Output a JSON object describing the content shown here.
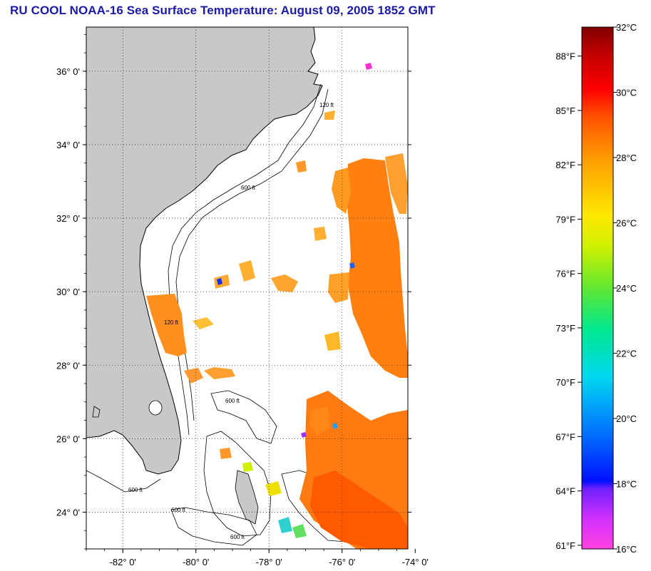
{
  "title": "RU COOL  NOAA-16  Sea Surface Temperature:  August 09, 2005 1852 GMT",
  "map": {
    "lat_labels": [
      "36° 0'",
      "34° 0'",
      "32° 0'",
      "30° 0'",
      "28° 0'",
      "26° 0'",
      "24° 0'"
    ],
    "lon_labels": [
      "-82° 0'",
      "-80° 0'",
      "-78° 0'",
      "-76° 0'",
      "-74° 0'"
    ],
    "lat_values": [
      36,
      34,
      32,
      30,
      28,
      26,
      24
    ],
    "lon_values": [
      -82,
      -80,
      -78,
      -76,
      -74
    ],
    "lat_range": [
      23,
      37.2
    ],
    "lon_range": [
      -83,
      -74.2
    ],
    "contour_labels": [
      "120 ft",
      "600 ft",
      "120 ft",
      "600 ft",
      "600 ft",
      "600 ft",
      "600 ft"
    ],
    "land_color": "#c8c8c8",
    "ocean_color": "#ffffff"
  },
  "colorbar": {
    "celsius_labels": [
      "32°C",
      "30°C",
      "28°C",
      "26°C",
      "24°C",
      "22°C",
      "20°C",
      "18°C",
      "16°C"
    ],
    "fahrenheit_labels": [
      "88°F",
      "85°F",
      "82°F",
      "79°F",
      "76°F",
      "73°F",
      "70°F",
      "67°F",
      "64°F",
      "61°F"
    ],
    "celsius_values": [
      32,
      30,
      28,
      26,
      24,
      22,
      20,
      18,
      16
    ],
    "fahrenheit_values": [
      88,
      85,
      82,
      79,
      76,
      73,
      70,
      67,
      64,
      61
    ],
    "range_c": [
      16,
      32
    ],
    "colors": [
      "#ff40e0",
      "#b020ff",
      "#0010ff",
      "#0090ff",
      "#00e8e8",
      "#20e060",
      "#c8f000",
      "#ffe000",
      "#ff9000",
      "#ff4000",
      "#ff0000",
      "#900000"
    ]
  }
}
